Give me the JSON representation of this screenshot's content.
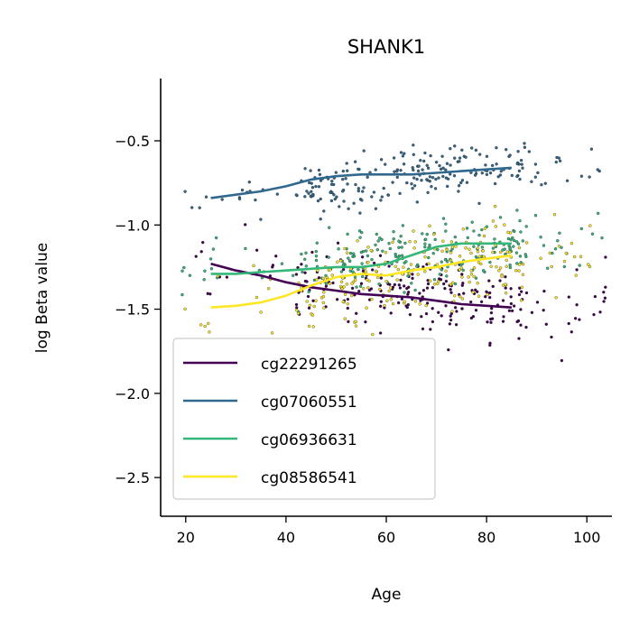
{
  "chart_data": {
    "type": "scatter",
    "title": "SHANK1",
    "xlabel": "Age",
    "ylabel": "log Beta value",
    "xlim": [
      15,
      105
    ],
    "ylim": [
      -2.73,
      -0.13
    ],
    "xticks": [
      20,
      40,
      60,
      80,
      100
    ],
    "xtick_labels": [
      "20",
      "40",
      "60",
      "80",
      "100"
    ],
    "yticks": [
      -0.5,
      -1.0,
      -1.5,
      -2.0,
      -2.5
    ],
    "ytick_labels": [
      "−0.5",
      "−1.0",
      "−1.5",
      "−2.0",
      "−2.5"
    ],
    "grid": false,
    "legend_position": "lower-left",
    "series": [
      {
        "name": "cg22291265",
        "color": "#440154",
        "trend_x": [
          25,
          30,
          35,
          40,
          45,
          50,
          55,
          60,
          65,
          70,
          75,
          80,
          85
        ],
        "trend_y": [
          -1.23,
          -1.27,
          -1.3,
          -1.34,
          -1.37,
          -1.39,
          -1.41,
          -1.42,
          -1.43,
          -1.45,
          -1.47,
          -1.48,
          -1.49
        ],
        "scatter_center": [
          -1.23,
          -1.49
        ],
        "scatter_spread": 0.18
      },
      {
        "name": "cg07060551",
        "color": "#31688e",
        "trend_x": [
          25,
          30,
          35,
          40,
          45,
          50,
          55,
          60,
          65,
          70,
          75,
          80,
          85
        ],
        "trend_y": [
          -0.84,
          -0.82,
          -0.8,
          -0.77,
          -0.73,
          -0.71,
          -0.7,
          -0.7,
          -0.7,
          -0.69,
          -0.68,
          -0.67,
          -0.66
        ],
        "scatter_center": [
          -0.84,
          -0.66
        ],
        "scatter_spread": 0.13
      },
      {
        "name": "cg06936631",
        "color": "#35b779",
        "trend_x": [
          25,
          30,
          35,
          40,
          45,
          50,
          55,
          60,
          65,
          70,
          75,
          80,
          85
        ],
        "trend_y": [
          -1.29,
          -1.29,
          -1.28,
          -1.27,
          -1.26,
          -1.25,
          -1.25,
          -1.23,
          -1.18,
          -1.13,
          -1.11,
          -1.11,
          -1.11
        ],
        "scatter_center": [
          -1.29,
          -1.11
        ],
        "scatter_spread": 0.16
      },
      {
        "name": "cg08586541",
        "color": "#fde725",
        "trend_x": [
          25,
          30,
          35,
          40,
          45,
          50,
          55,
          60,
          65,
          70,
          75,
          80,
          85
        ],
        "trend_y": [
          -1.49,
          -1.48,
          -1.46,
          -1.42,
          -1.36,
          -1.31,
          -1.29,
          -1.3,
          -1.27,
          -1.25,
          -1.22,
          -1.2,
          -1.18
        ],
        "scatter_center": [
          -1.49,
          -1.18
        ],
        "scatter_spread": 0.2
      }
    ]
  }
}
